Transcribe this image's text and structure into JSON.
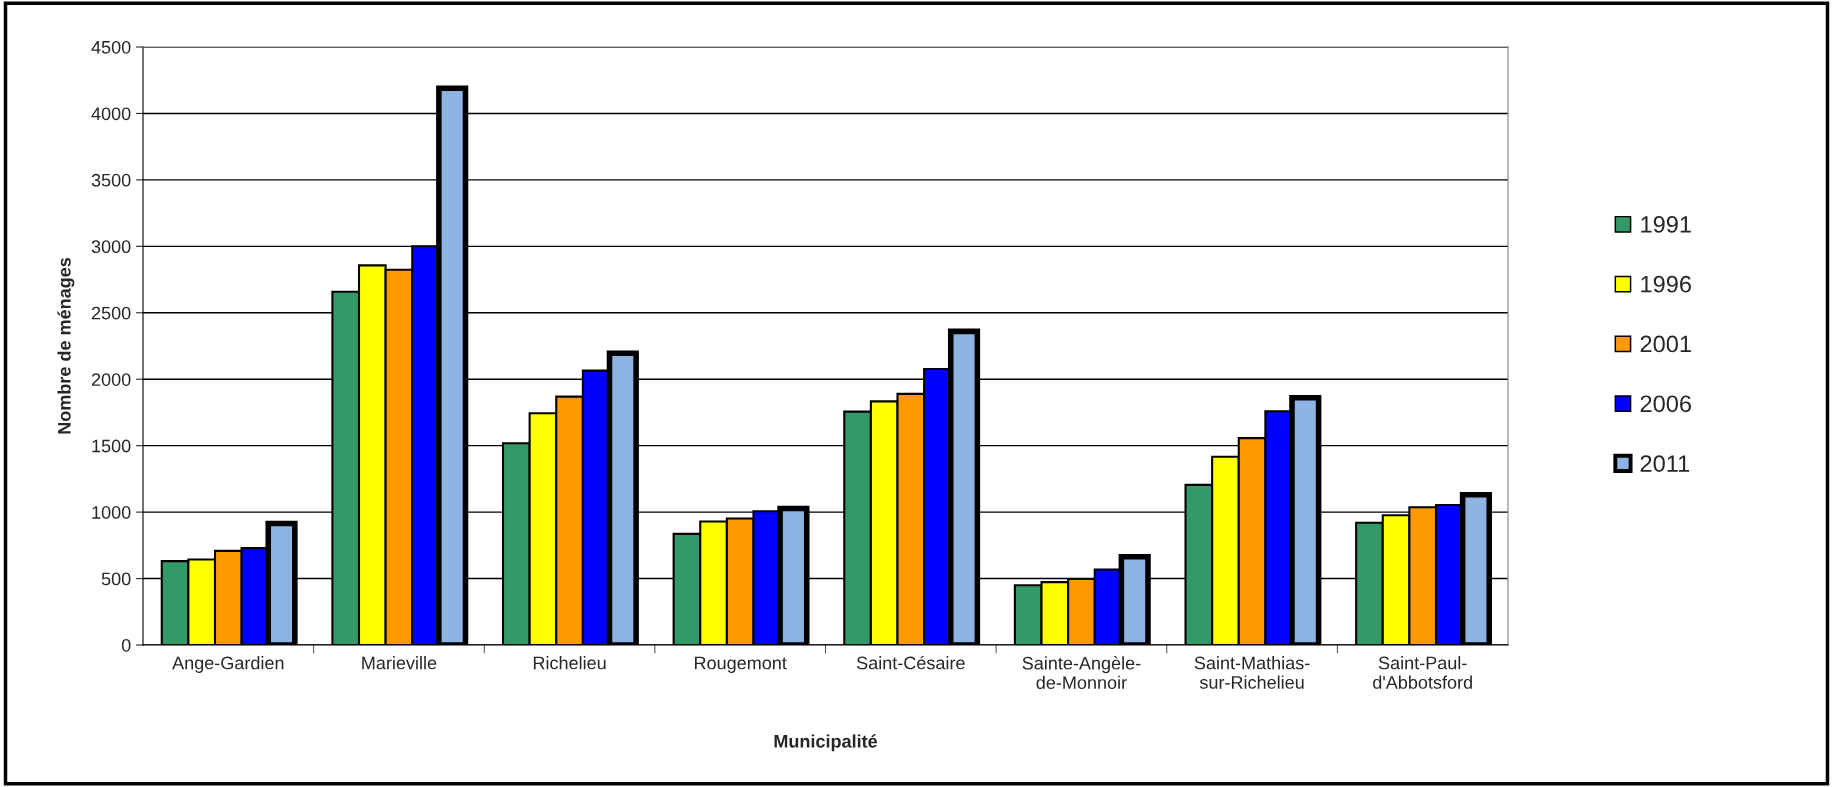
{
  "chart_data": {
    "type": "bar",
    "xlabel": "Municipalité",
    "ylabel": "Nombre de ménages",
    "categories": [
      "Ange-Gardien",
      "Marieville",
      "Richelieu",
      "Rougemont",
      "Saint-Césaire",
      "Sainte-Angèle-\nde-Monnoir",
      "Saint-Mathias-\nsur-Richelieu",
      "Saint-Paul-\nd'Abbotsford"
    ],
    "series": [
      {
        "name": "1991",
        "color": "#339966",
        "values": [
          631,
          2658,
          1518,
          836,
          1756,
          449,
          1205,
          920
        ]
      },
      {
        "name": "1996",
        "color": "#ffff00",
        "values": [
          643,
          2857,
          1744,
          929,
          1833,
          473,
          1417,
          976
        ]
      },
      {
        "name": "2001",
        "color": "#ff9900",
        "values": [
          708,
          2824,
          1869,
          952,
          1890,
          497,
          1557,
          1036
        ]
      },
      {
        "name": "2006",
        "color": "#0000ff",
        "values": [
          729,
          3000,
          2065,
          1006,
          2077,
          568,
          1759,
          1054
        ]
      },
      {
        "name": "2011",
        "color": "#8eb4e3",
        "values": [
          915,
          4190,
          2196,
          1027,
          2360,
          664,
          1860,
          1131
        ]
      }
    ],
    "ylim": [
      0,
      4500
    ],
    "yticks": [
      0,
      500,
      1000,
      1500,
      2000,
      2500,
      3000,
      3500,
      4000,
      4500
    ],
    "grid": "y",
    "legend": "right",
    "marker": "square"
  }
}
